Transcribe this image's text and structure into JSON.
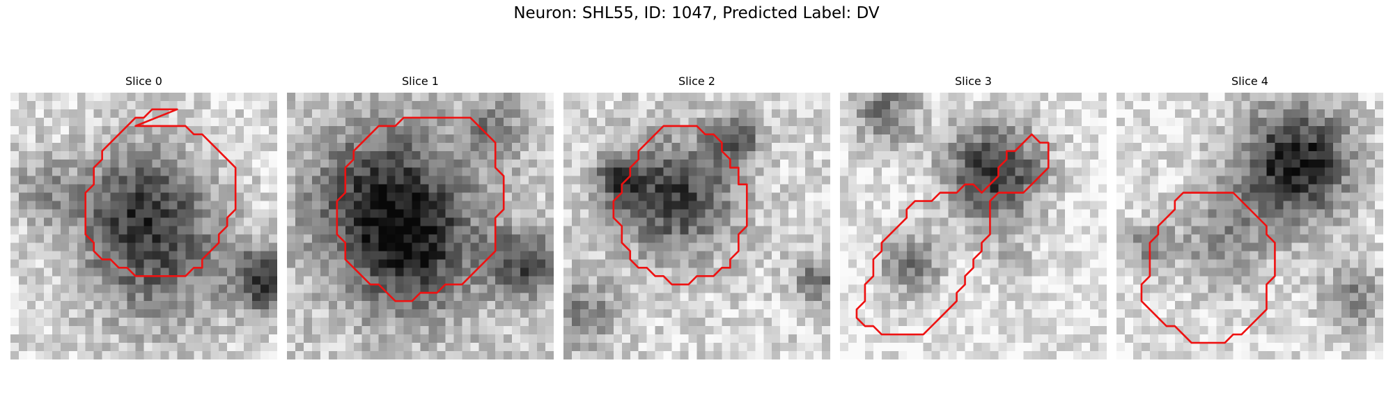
{
  "figure": {
    "title": "Neuron: SHL55, ID: 1047, Predicted Label: DV",
    "contour_color": "#ee1111",
    "colormap": "gray"
  },
  "slices": [
    {
      "label": "Slice 0",
      "contour": [
        [
          15,
          4
        ],
        [
          21,
          4
        ],
        [
          22,
          5
        ],
        [
          23,
          5
        ],
        [
          27,
          9
        ],
        [
          27,
          14
        ],
        [
          26,
          15
        ],
        [
          26,
          16
        ],
        [
          25,
          17
        ],
        [
          25,
          18
        ],
        [
          23,
          20
        ],
        [
          23,
          21
        ],
        [
          22,
          21
        ],
        [
          21,
          22
        ],
        [
          15,
          22
        ],
        [
          14,
          21
        ],
        [
          13,
          21
        ],
        [
          12,
          20
        ],
        [
          11,
          20
        ],
        [
          10,
          19
        ],
        [
          10,
          18
        ],
        [
          9,
          17
        ],
        [
          9,
          12
        ],
        [
          10,
          11
        ],
        [
          10,
          9
        ],
        [
          11,
          8
        ],
        [
          11,
          7
        ],
        [
          15,
          3
        ],
        [
          16,
          3
        ],
        [
          17,
          2
        ],
        [
          20,
          2
        ]
      ]
    },
    {
      "label": "Slice 1",
      "contour": [
        [
          17,
          3
        ],
        [
          22,
          3
        ],
        [
          25,
          6
        ],
        [
          25,
          9
        ],
        [
          26,
          10
        ],
        [
          26,
          14
        ],
        [
          25,
          15
        ],
        [
          25,
          19
        ],
        [
          24,
          20
        ],
        [
          23,
          21
        ],
        [
          22,
          22
        ],
        [
          21,
          23
        ],
        [
          19,
          23
        ],
        [
          18,
          24
        ],
        [
          16,
          24
        ],
        [
          15,
          25
        ],
        [
          13,
          25
        ],
        [
          12,
          24
        ],
        [
          11,
          23
        ],
        [
          10,
          23
        ],
        [
          9,
          22
        ],
        [
          8,
          21
        ],
        [
          7,
          20
        ],
        [
          7,
          18
        ],
        [
          6,
          17
        ],
        [
          6,
          13
        ],
        [
          7,
          12
        ],
        [
          7,
          9
        ],
        [
          8,
          8
        ],
        [
          8,
          7
        ],
        [
          10,
          5
        ],
        [
          11,
          4
        ],
        [
          13,
          4
        ],
        [
          14,
          3
        ]
      ]
    },
    {
      "label": "Slice 2",
      "contour": [
        [
          14,
          4
        ],
        [
          16,
          4
        ],
        [
          17,
          5
        ],
        [
          18,
          5
        ],
        [
          19,
          6
        ],
        [
          19,
          7
        ],
        [
          20,
          8
        ],
        [
          20,
          9
        ],
        [
          21,
          9
        ],
        [
          21,
          11
        ],
        [
          22,
          11
        ],
        [
          22,
          16
        ],
        [
          21,
          17
        ],
        [
          21,
          19
        ],
        [
          20,
          20
        ],
        [
          20,
          21
        ],
        [
          19,
          21
        ],
        [
          18,
          22
        ],
        [
          16,
          22
        ],
        [
          15,
          23
        ],
        [
          13,
          23
        ],
        [
          12,
          22
        ],
        [
          11,
          22
        ],
        [
          10,
          21
        ],
        [
          9,
          21
        ],
        [
          8,
          20
        ],
        [
          8,
          19
        ],
        [
          7,
          18
        ],
        [
          7,
          16
        ],
        [
          6,
          15
        ],
        [
          6,
          13
        ],
        [
          7,
          12
        ],
        [
          7,
          11
        ],
        [
          8,
          10
        ],
        [
          8,
          9
        ],
        [
          9,
          8
        ],
        [
          9,
          7
        ],
        [
          10,
          6
        ],
        [
          11,
          5
        ],
        [
          12,
          4
        ]
      ]
    },
    {
      "label": "Slice 3",
      "contour": [
        [
          19,
          9
        ],
        [
          20,
          8
        ],
        [
          20,
          7
        ],
        [
          21,
          7
        ],
        [
          22,
          6
        ],
        [
          23,
          5
        ],
        [
          24,
          6
        ],
        [
          25,
          6
        ],
        [
          25,
          9
        ],
        [
          24,
          10
        ],
        [
          23,
          11
        ],
        [
          22,
          12
        ],
        [
          19,
          12
        ],
        [
          18,
          13
        ],
        [
          18,
          17
        ],
        [
          17,
          18
        ],
        [
          17,
          19
        ],
        [
          16,
          20
        ],
        [
          16,
          21
        ],
        [
          15,
          22
        ],
        [
          15,
          23
        ],
        [
          14,
          24
        ],
        [
          14,
          25
        ],
        [
          13,
          26
        ],
        [
          12,
          27
        ],
        [
          11,
          28
        ],
        [
          10,
          29
        ],
        [
          5,
          29
        ],
        [
          4,
          28
        ],
        [
          3,
          28
        ],
        [
          2,
          27
        ],
        [
          2,
          26
        ],
        [
          3,
          25
        ],
        [
          3,
          23
        ],
        [
          4,
          22
        ],
        [
          4,
          20
        ],
        [
          5,
          19
        ],
        [
          5,
          18
        ],
        [
          6,
          17
        ],
        [
          7,
          16
        ],
        [
          8,
          15
        ],
        [
          8,
          14
        ],
        [
          9,
          13
        ],
        [
          11,
          13
        ],
        [
          12,
          12
        ],
        [
          14,
          12
        ],
        [
          15,
          11
        ],
        [
          16,
          11
        ],
        [
          17,
          12
        ],
        [
          18,
          11
        ],
        [
          19,
          10
        ]
      ]
    },
    {
      "label": "Slice 4",
      "contour": [
        [
          8,
          12
        ],
        [
          14,
          12
        ],
        [
          18,
          16
        ],
        [
          18,
          17
        ],
        [
          19,
          18
        ],
        [
          19,
          22
        ],
        [
          18,
          23
        ],
        [
          18,
          26
        ],
        [
          17,
          27
        ],
        [
          16,
          28
        ],
        [
          15,
          29
        ],
        [
          14,
          29
        ],
        [
          13,
          30
        ],
        [
          9,
          30
        ],
        [
          8,
          29
        ],
        [
          7,
          28
        ],
        [
          6,
          28
        ],
        [
          5,
          27
        ],
        [
          4,
          26
        ],
        [
          3,
          25
        ],
        [
          3,
          23
        ],
        [
          4,
          22
        ],
        [
          4,
          18
        ],
        [
          5,
          17
        ],
        [
          5,
          16
        ],
        [
          6,
          15
        ],
        [
          7,
          14
        ],
        [
          7,
          13
        ]
      ]
    }
  ]
}
